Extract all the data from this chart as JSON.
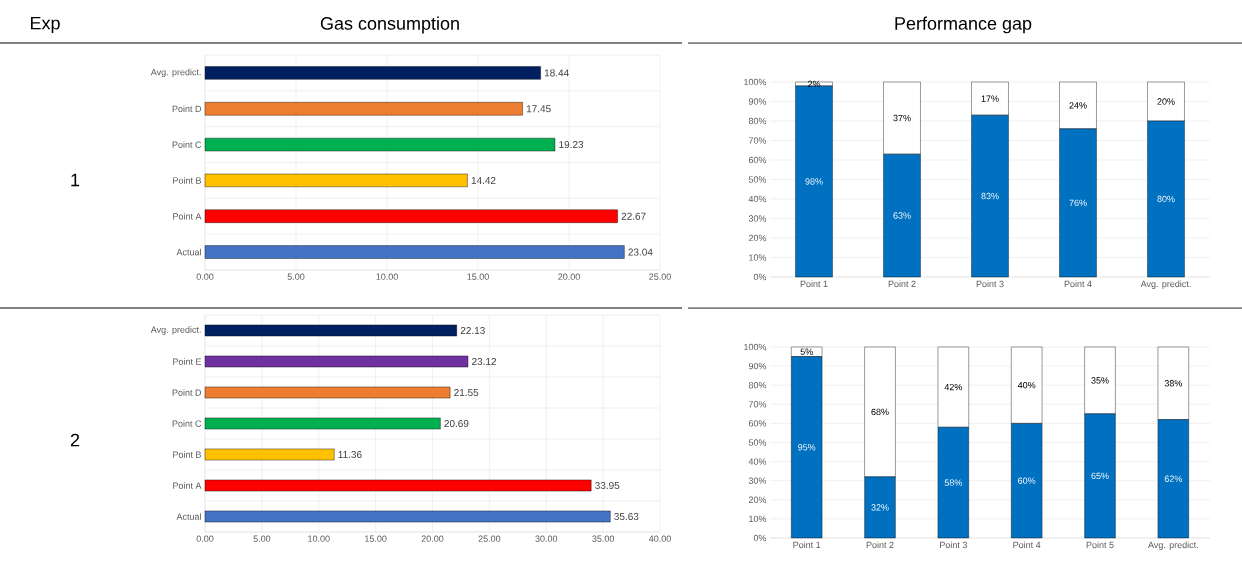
{
  "chart_data": [
    {
      "type": "bar",
      "orientation": "horizontal",
      "title": "Gas consumption",
      "annotations": [
        "Exp",
        "1"
      ],
      "categories": [
        "Avg. predict.",
        "Point D",
        "Point C",
        "Point B",
        "Point A",
        "Actual"
      ],
      "values": [
        18.44,
        17.45,
        19.23,
        14.42,
        22.67,
        23.04
      ],
      "colors": [
        "#002060",
        "#ed7d31",
        "#00b050",
        "#ffc000",
        "#ff0000",
        "#4472c4"
      ],
      "xlim": [
        0,
        25
      ],
      "xticks": [
        {
          "value": 0,
          "label": "0.00"
        },
        {
          "value": 5,
          "label": "5.00"
        },
        {
          "value": 10,
          "label": "10.00"
        },
        {
          "value": 15,
          "label": "15.00"
        },
        {
          "value": 20,
          "label": "20.00"
        },
        {
          "value": 25,
          "label": "25.00"
        }
      ],
      "data_labels": true,
      "grid": true
    },
    {
      "type": "bar",
      "stacked": true,
      "title": "Performance gap",
      "categories": [
        "Point 1",
        "Point 2",
        "Point 3",
        "Point 4",
        "Avg. predict."
      ],
      "series": [
        {
          "color": "#0070c0",
          "values": [
            98,
            63,
            83,
            76,
            80
          ],
          "value_labels": [
            "98%",
            "63%",
            "83%",
            "76%",
            "80%"
          ]
        },
        {
          "color": "#ffffff",
          "values": [
            2,
            37,
            17,
            24,
            20
          ],
          "value_labels": [
            "2%",
            "37%",
            "17%",
            "24%",
            "20%"
          ]
        }
      ],
      "ylim": [
        0,
        100
      ],
      "yticks": [
        {
          "value": 0,
          "label": "0%"
        },
        {
          "value": 10,
          "label": "10%"
        },
        {
          "value": 20,
          "label": "20%"
        },
        {
          "value": 30,
          "label": "30%"
        },
        {
          "value": 40,
          "label": "40%"
        },
        {
          "value": 50,
          "label": "50%"
        },
        {
          "value": 60,
          "label": "60%"
        },
        {
          "value": 70,
          "label": "70%"
        },
        {
          "value": 80,
          "label": "80%"
        },
        {
          "value": 90,
          "label": "90%"
        },
        {
          "value": 100,
          "label": "100%"
        }
      ],
      "grid": "y"
    },
    {
      "type": "bar",
      "orientation": "horizontal",
      "annotations": [
        "2"
      ],
      "categories": [
        "Avg. predict.",
        "Point E",
        "Point D",
        "Point C",
        "Point B",
        "Point A",
        "Actual"
      ],
      "values": [
        22.13,
        23.12,
        21.55,
        20.69,
        11.36,
        33.95,
        35.63
      ],
      "colors": [
        "#002060",
        "#7030a0",
        "#ed7d31",
        "#00b050",
        "#ffc000",
        "#ff0000",
        "#4472c4"
      ],
      "xlim": [
        0,
        40
      ],
      "xticks": [
        {
          "value": 0,
          "label": "0.00"
        },
        {
          "value": 5,
          "label": "5.00"
        },
        {
          "value": 10,
          "label": "10.00"
        },
        {
          "value": 15,
          "label": "15.00"
        },
        {
          "value": 20,
          "label": "20.00"
        },
        {
          "value": 25,
          "label": "25.00"
        },
        {
          "value": 30,
          "label": "30.00"
        },
        {
          "value": 35,
          "label": "35.00"
        },
        {
          "value": 40,
          "label": "40.00"
        }
      ],
      "data_labels": true,
      "grid": true
    },
    {
      "type": "bar",
      "stacked": true,
      "categories": [
        "Point 1",
        "Point 2",
        "Point 3",
        "Point 4",
        "Point 5",
        "Avg. predict."
      ],
      "series": [
        {
          "color": "#0070c0",
          "values": [
            95,
            32,
            58,
            60,
            65,
            62
          ],
          "value_labels": [
            "95%",
            "32%",
            "58%",
            "60%",
            "65%",
            "62%"
          ]
        },
        {
          "color": "#ffffff",
          "values": [
            5,
            68,
            42,
            40,
            35,
            38
          ],
          "value_labels": [
            "5%",
            "68%",
            "42%",
            "40%",
            "35%",
            "38%"
          ]
        }
      ],
      "ylim": [
        0,
        100
      ],
      "yticks": [
        {
          "value": 0,
          "label": "0%"
        },
        {
          "value": 10,
          "label": "10%"
        },
        {
          "value": 20,
          "label": "20%"
        },
        {
          "value": 30,
          "label": "30%"
        },
        {
          "value": 40,
          "label": "40%"
        },
        {
          "value": 50,
          "label": "50%"
        },
        {
          "value": 60,
          "label": "60%"
        },
        {
          "value": 70,
          "label": "70%"
        },
        {
          "value": 80,
          "label": "80%"
        },
        {
          "value": 90,
          "label": "90%"
        },
        {
          "value": 100,
          "label": "100%"
        }
      ],
      "grid": "y"
    }
  ]
}
